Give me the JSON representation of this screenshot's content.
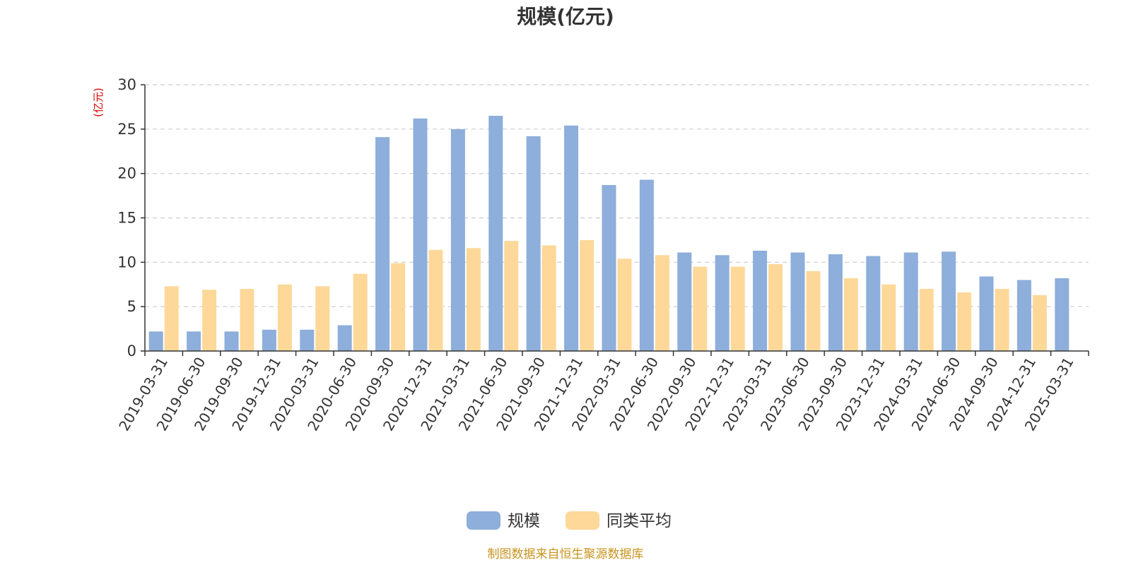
{
  "chart_data": {
    "type": "bar",
    "title": "规模(亿元)",
    "ylabel": "(亿元)",
    "xlabel": "",
    "ylim": [
      0,
      30
    ],
    "yticks": [
      0,
      5,
      10,
      15,
      20,
      25,
      30
    ],
    "grid": true,
    "legend_position": "bottom-center",
    "categories": [
      "2019-03-31",
      "2019-06-30",
      "2019-09-30",
      "2019-12-31",
      "2020-03-31",
      "2020-06-30",
      "2020-09-30",
      "2020-12-31",
      "2021-03-31",
      "2021-06-30",
      "2021-09-30",
      "2021-12-31",
      "2022-03-31",
      "2022-06-30",
      "2022-09-30",
      "2022-12-31",
      "2023-03-31",
      "2023-06-30",
      "2023-09-30",
      "2023-12-31",
      "2024-03-31",
      "2024-06-30",
      "2024-09-30",
      "2024-12-31",
      "2025-03-31"
    ],
    "series": [
      {
        "name": "规模",
        "color": "#8eaedb",
        "values": [
          2.2,
          2.2,
          2.2,
          2.4,
          2.4,
          2.9,
          24.1,
          26.2,
          25.0,
          26.5,
          24.2,
          25.4,
          18.7,
          19.3,
          11.1,
          10.8,
          11.3,
          11.1,
          10.9,
          10.7,
          11.1,
          11.2,
          8.4,
          8.0,
          8.2
        ]
      },
      {
        "name": "同类平均",
        "color": "#fdd899",
        "values": [
          7.3,
          6.9,
          7.0,
          7.5,
          7.3,
          8.7,
          9.9,
          11.4,
          11.6,
          12.4,
          11.9,
          12.5,
          10.4,
          10.8,
          9.5,
          9.5,
          9.8,
          9.0,
          8.2,
          7.5,
          7.0,
          6.6,
          7.0,
          6.3,
          null
        ]
      }
    ]
  },
  "source_note": "制图数据来自恒生聚源数据库"
}
